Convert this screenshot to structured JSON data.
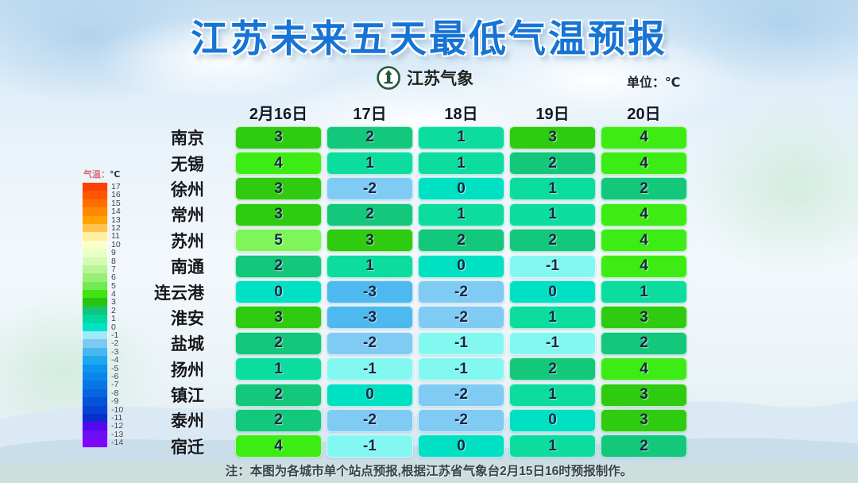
{
  "title": "江苏未来五天最低气温预报",
  "logo": {
    "text": "江苏气象"
  },
  "unit_label": "单位：℃",
  "legend": {
    "title_temp": "气温：",
    "title_unit": "℃",
    "entries": [
      {
        "value": "17",
        "color": "#fa4100"
      },
      {
        "value": "16",
        "color": "#ff5500"
      },
      {
        "value": "15",
        "color": "#ff6f00"
      },
      {
        "value": "14",
        "color": "#ff8900"
      },
      {
        "value": "13",
        "color": "#ffa300"
      },
      {
        "value": "12",
        "color": "#ffc44f"
      },
      {
        "value": "11",
        "color": "#ffefa0"
      },
      {
        "value": "10",
        "color": "#fbffca"
      },
      {
        "value": "9",
        "color": "#eaffc5"
      },
      {
        "value": "8",
        "color": "#d5fab1"
      },
      {
        "value": "7",
        "color": "#b8f596"
      },
      {
        "value": "6",
        "color": "#97f075"
      },
      {
        "value": "5",
        "color": "#72eb50"
      },
      {
        "value": "4",
        "color": "#3ee414"
      },
      {
        "value": "3",
        "color": "#29c40f"
      },
      {
        "value": "2",
        "color": "#12c47a"
      },
      {
        "value": "1",
        "color": "#00d89e"
      },
      {
        "value": "0",
        "color": "#00e2c6"
      },
      {
        "value": "-1",
        "color": "#9fe9f8"
      },
      {
        "value": "-2",
        "color": "#7ccaf2"
      },
      {
        "value": "-3",
        "color": "#47b7ef"
      },
      {
        "value": "-4",
        "color": "#1ea7f0"
      },
      {
        "value": "-5",
        "color": "#0d94ee"
      },
      {
        "value": "-6",
        "color": "#0a85ea"
      },
      {
        "value": "-7",
        "color": "#0875e5"
      },
      {
        "value": "-8",
        "color": "#0666e0"
      },
      {
        "value": "-9",
        "color": "#0553da"
      },
      {
        "value": "-10",
        "color": "#0443d4"
      },
      {
        "value": "-11",
        "color": "#0c2ecd"
      },
      {
        "value": "-12",
        "color": "#5509f0"
      },
      {
        "value": "-13",
        "color": "#6b10f4"
      },
      {
        "value": "-14",
        "color": "#7d07fa"
      }
    ]
  },
  "temp_colors": {
    "5": "#7ef65b",
    "4": "#3dec14",
    "3": "#2fcb10",
    "2": "#13c77b",
    "1": "#0cdd9e",
    "0": "#00e0c2",
    "-1": "#82f8f0",
    "-2": "#7fcbf3",
    "-3": "#4eb9ee"
  },
  "note": "注：本图为各城市单个站点预报,根据江苏省气象台2月15日16时预报制作。",
  "chart_data": {
    "type": "heatmap",
    "title": "江苏未来五天最低气温预报",
    "unit": "℃",
    "x": [
      "2月16日",
      "17日",
      "18日",
      "19日",
      "20日"
    ],
    "categories": [
      "南京",
      "无锡",
      "徐州",
      "常州",
      "苏州",
      "南通",
      "连云港",
      "淮安",
      "盐城",
      "扬州",
      "镇江",
      "泰州",
      "宿迁"
    ],
    "series": [
      {
        "name": "南京",
        "values": [
          3,
          2,
          1,
          3,
          4
        ]
      },
      {
        "name": "无锡",
        "values": [
          4,
          1,
          1,
          2,
          4
        ]
      },
      {
        "name": "徐州",
        "values": [
          3,
          -2,
          0,
          1,
          2
        ]
      },
      {
        "name": "常州",
        "values": [
          3,
          2,
          1,
          1,
          4
        ]
      },
      {
        "name": "苏州",
        "values": [
          5,
          3,
          2,
          2,
          4
        ]
      },
      {
        "name": "南通",
        "values": [
          2,
          1,
          0,
          -1,
          4
        ]
      },
      {
        "name": "连云港",
        "values": [
          0,
          -3,
          -2,
          0,
          1
        ]
      },
      {
        "name": "淮安",
        "values": [
          3,
          -3,
          -2,
          1,
          3
        ]
      },
      {
        "name": "盐城",
        "values": [
          2,
          -2,
          -1,
          -1,
          2
        ]
      },
      {
        "name": "扬州",
        "values": [
          1,
          -1,
          -1,
          2,
          4
        ]
      },
      {
        "name": "镇江",
        "values": [
          2,
          0,
          -2,
          1,
          3
        ]
      },
      {
        "name": "泰州",
        "values": [
          2,
          -2,
          -2,
          0,
          3
        ]
      },
      {
        "name": "宿迁",
        "values": [
          4,
          -1,
          0,
          1,
          2
        ]
      }
    ],
    "legend_scale": {
      "min": -14,
      "max": 17,
      "label": "气温：℃",
      "position": "left"
    }
  }
}
